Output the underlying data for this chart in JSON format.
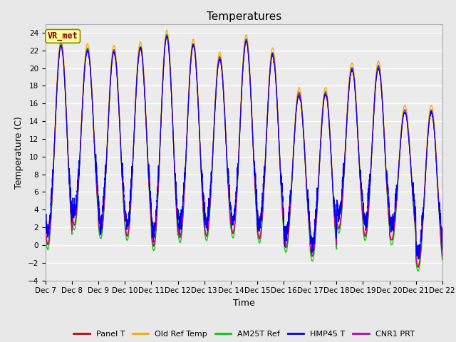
{
  "title": "Temperatures",
  "xlabel": "Time",
  "ylabel": "Temperature (C)",
  "ylim": [
    -4,
    25
  ],
  "yticks": [
    -4,
    -2,
    0,
    2,
    4,
    6,
    8,
    10,
    12,
    14,
    16,
    18,
    20,
    22,
    24
  ],
  "annotation_text": "VR_met",
  "annotation_color": "#8B0000",
  "annotation_bg": "#FFFF99",
  "series_colors": {
    "Panel T": "#CC0000",
    "Old Ref Temp": "#FFA500",
    "AM25T Ref": "#00CC00",
    "HMP45 T": "#0000EE",
    "CNR1 PRT": "#BB00BB"
  },
  "background_color": "#E8E8E8",
  "plot_bg": "#EBEBEB",
  "num_days": 15,
  "start_day": 7,
  "points_per_day": 288,
  "grid_color": "#FFFFFF",
  "title_fontsize": 11,
  "tick_fontsize": 7.5,
  "label_fontsize": 9
}
